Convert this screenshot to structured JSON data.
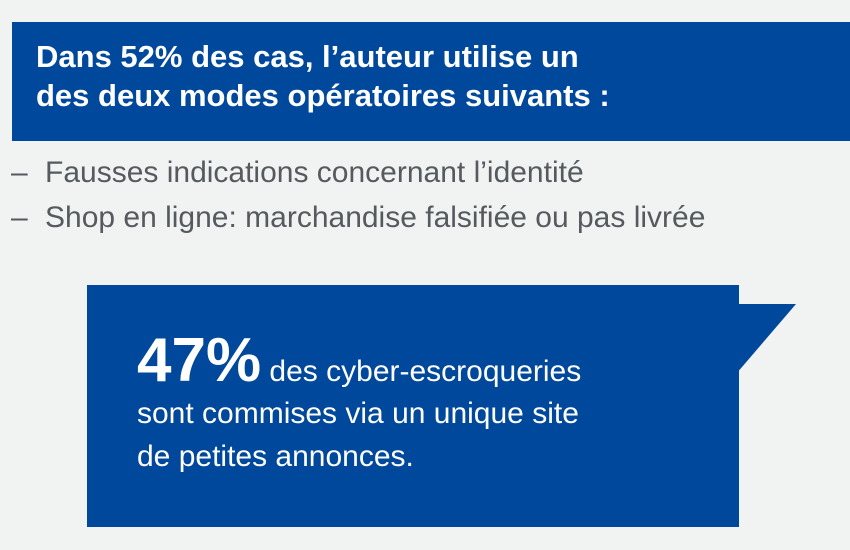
{
  "header": {
    "line1": "Dans 52% des cas, l’auteur utilise un",
    "line2": "des deux modes opératoires suivants :"
  },
  "bullets": [
    {
      "marker": "–",
      "text": "Fausses indications concernant l’identité"
    },
    {
      "marker": "–",
      "text": "Shop en ligne: marchandise falsifiée ou pas livrée"
    }
  ],
  "callout": {
    "number": "47%",
    "text_line1": " des cyber-escroqueries",
    "text_line2": "sont commises via un unique site",
    "text_line3": "de petites annonces."
  },
  "colors": {
    "brand_blue": "#00489b",
    "background": "#f1f3f2",
    "bullet_text": "#555a5e"
  }
}
